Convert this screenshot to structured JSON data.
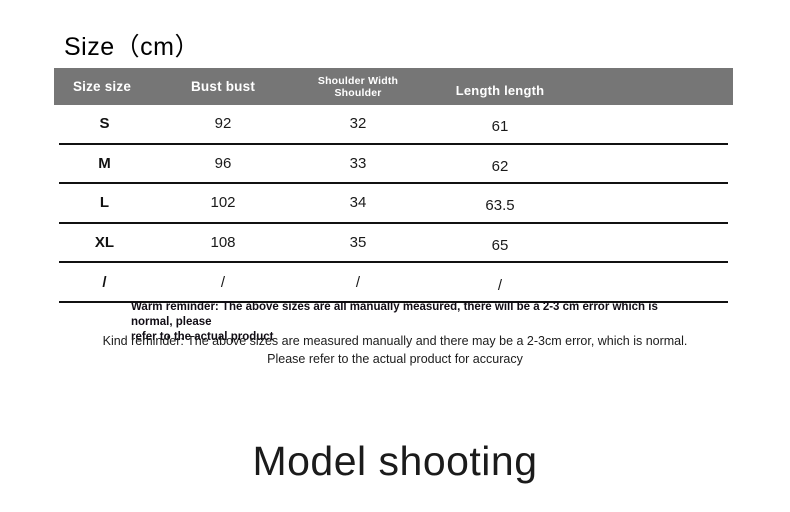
{
  "title": "Size（cm）",
  "colors": {
    "header_bg": "#767676",
    "header_text": "#ffffff",
    "row_line": "#111111",
    "body_text": "#1a1a1a"
  },
  "table": {
    "columns": [
      "Size size",
      "Bust bust",
      "Shoulder Width Shoulder",
      "Length length"
    ],
    "rows": [
      [
        "S",
        "92",
        "32",
        "61"
      ],
      [
        "M",
        "96",
        "33",
        "62"
      ],
      [
        "L",
        "102",
        "34",
        "63.5"
      ],
      [
        "XL",
        "108",
        "35",
        "65"
      ],
      [
        "/",
        "/",
        "/",
        "/"
      ]
    ]
  },
  "reminders": {
    "warm_line1": "Warm reminder: The above sizes are all manually measured, there will be a 2-3 cm error which is normal, please",
    "warm_line2": "refer to the actual product",
    "kind_line1": "Kind reminder: The above sizes are measured manually and there may be a 2-3cm error, which is normal.",
    "kind_line2": "Please refer to the actual product for accuracy"
  },
  "footer": {
    "title": "Model shooting"
  }
}
